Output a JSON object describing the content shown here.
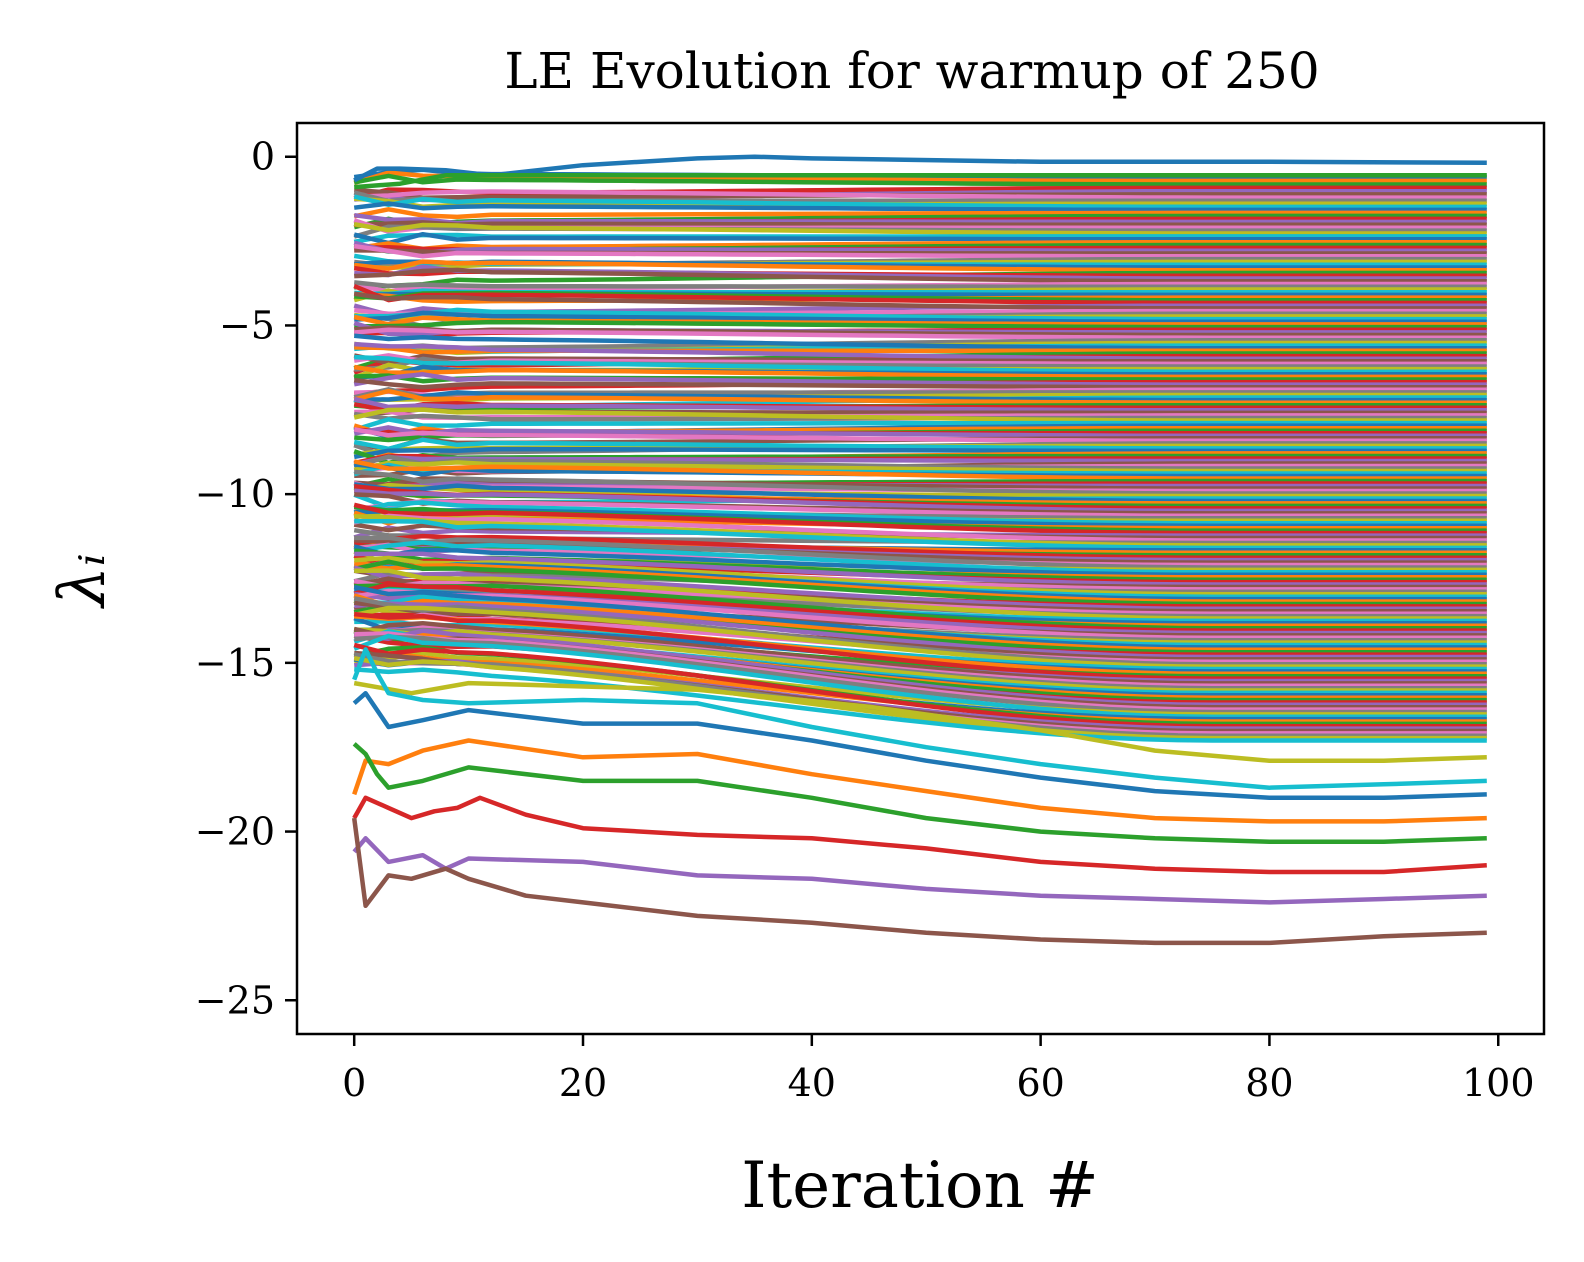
{
  "chart_data": {
    "type": "line",
    "title": "LE Evolution for warmup of 250",
    "xlabel": "Iteration #",
    "ylabel": "λᵢ",
    "xlim": [
      -5,
      104
    ],
    "ylim": [
      -26,
      1
    ],
    "xticks": [
      0,
      20,
      40,
      60,
      80,
      100
    ],
    "xtick_labels": [
      "0",
      "20",
      "40",
      "60",
      "80",
      "100"
    ],
    "yticks": [
      0,
      -5,
      -10,
      -15,
      -20,
      -25
    ],
    "ytick_labels": [
      "0",
      "−5",
      "−10",
      "−15",
      "−20",
      "−25"
    ],
    "grid": false,
    "legend": false,
    "palette": [
      "#1f77b4",
      "#ff7f0e",
      "#2ca02c",
      "#d62728",
      "#9467bd",
      "#8c564b",
      "#e377c2",
      "#7f7f7f",
      "#bcbd22",
      "#17becf"
    ],
    "iterations": [
      0,
      99
    ],
    "num_exponents": 220,
    "highlighted_series": [
      {
        "color": "#1f77b4",
        "x": [
          0,
          2,
          4,
          8,
          12,
          20,
          30,
          35,
          40,
          60,
          80,
          99
        ],
        "y": [
          -0.7,
          -0.35,
          -0.35,
          -0.4,
          -0.55,
          -0.25,
          -0.05,
          0.0,
          -0.05,
          -0.15,
          -0.15,
          -0.18
        ]
      },
      {
        "color": "#2ca02c",
        "x": [
          0,
          4,
          8,
          20,
          40,
          60,
          80,
          99
        ],
        "y": [
          -0.9,
          -0.8,
          -0.55,
          -0.55,
          -0.55,
          -0.55,
          -0.55,
          -0.55
        ]
      },
      {
        "color": "#bcbd22",
        "x": [
          0,
          5,
          10,
          20,
          30,
          45,
          60,
          70,
          80,
          90,
          99
        ],
        "y": [
          -15.6,
          -15.9,
          -15.6,
          -15.7,
          -15.8,
          -16.3,
          -17.0,
          -17.6,
          -17.9,
          -17.9,
          -17.8
        ]
      },
      {
        "color": "#1f77b4",
        "x": [
          0,
          1,
          3,
          6,
          10,
          20,
          30,
          40,
          50,
          60,
          70,
          80,
          90,
          99
        ],
        "y": [
          -16.2,
          -15.9,
          -16.9,
          -16.7,
          -16.4,
          -16.8,
          -16.8,
          -17.3,
          -17.9,
          -18.4,
          -18.8,
          -19.0,
          -19.0,
          -18.9
        ]
      },
      {
        "color": "#17becf",
        "x": [
          0,
          1,
          2,
          3,
          6,
          10,
          20,
          30,
          40,
          50,
          60,
          70,
          80,
          90,
          99
        ],
        "y": [
          -15.5,
          -14.6,
          -15.3,
          -15.9,
          -16.1,
          -16.2,
          -16.1,
          -16.2,
          -16.9,
          -17.5,
          -18.0,
          -18.4,
          -18.7,
          -18.6,
          -18.5
        ]
      },
      {
        "color": "#ff7f0e",
        "x": [
          0,
          1,
          3,
          6,
          10,
          20,
          30,
          40,
          50,
          60,
          70,
          80,
          90,
          99
        ],
        "y": [
          -18.9,
          -17.9,
          -18.0,
          -17.6,
          -17.3,
          -17.8,
          -17.7,
          -18.3,
          -18.8,
          -19.3,
          -19.6,
          -19.7,
          -19.7,
          -19.6
        ]
      },
      {
        "color": "#2ca02c",
        "x": [
          0,
          1,
          2,
          3,
          6,
          10,
          20,
          30,
          40,
          50,
          60,
          70,
          80,
          90,
          99
        ],
        "y": [
          -17.4,
          -17.7,
          -18.3,
          -18.7,
          -18.5,
          -18.1,
          -18.5,
          -18.5,
          -19.0,
          -19.6,
          -20.0,
          -20.2,
          -20.3,
          -20.3,
          -20.2
        ]
      },
      {
        "color": "#d62728",
        "x": [
          0,
          1,
          3,
          5,
          7,
          9,
          11,
          15,
          20,
          30,
          40,
          50,
          60,
          70,
          80,
          90,
          99
        ],
        "y": [
          -19.6,
          -19.0,
          -19.3,
          -19.6,
          -19.4,
          -19.3,
          -19.0,
          -19.5,
          -19.9,
          -20.1,
          -20.2,
          -20.5,
          -20.9,
          -21.1,
          -21.2,
          -21.2,
          -21.0
        ]
      },
      {
        "color": "#9467bd",
        "x": [
          0,
          1,
          3,
          6,
          8,
          10,
          20,
          30,
          40,
          50,
          60,
          70,
          80,
          90,
          99
        ],
        "y": [
          -20.6,
          -20.2,
          -20.9,
          -20.7,
          -21.1,
          -20.8,
          -20.9,
          -21.3,
          -21.4,
          -21.7,
          -21.9,
          -22.0,
          -22.1,
          -22.0,
          -21.9
        ]
      },
      {
        "color": "#8c564b",
        "x": [
          0,
          1,
          3,
          5,
          8,
          10,
          15,
          20,
          30,
          40,
          50,
          60,
          70,
          74,
          80,
          90,
          99
        ],
        "y": [
          -19.6,
          -22.2,
          -21.3,
          -21.4,
          -21.1,
          -21.4,
          -21.9,
          -22.1,
          -22.5,
          -22.7,
          -23.0,
          -23.2,
          -23.3,
          -23.3,
          -23.3,
          -23.1,
          -23.0
        ]
      }
    ]
  }
}
